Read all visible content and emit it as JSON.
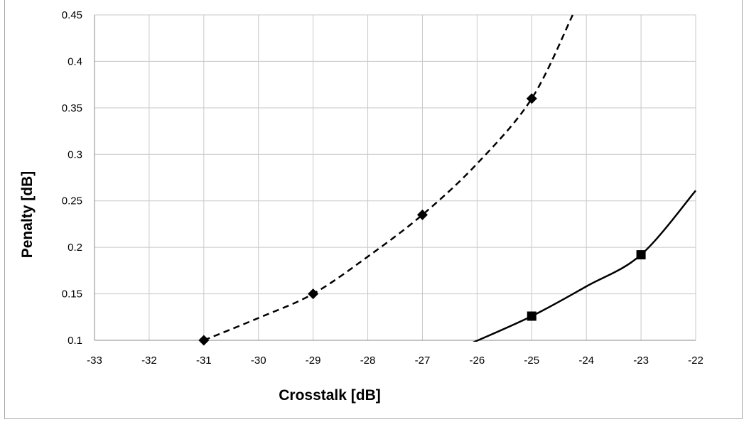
{
  "chart_data": {
    "type": "line",
    "title": "",
    "xlabel": "Crosstalk [dB]",
    "ylabel": "Penalty [dB]",
    "xlim": [
      -33,
      -22
    ],
    "ylim": [
      0.1,
      0.45
    ],
    "x_ticks": [
      "-33",
      "-32",
      "-31",
      "-30",
      "-29",
      "-28",
      "-27",
      "-26",
      "-25",
      "-24",
      "-23",
      "-22"
    ],
    "y_ticks": [
      "0.1",
      "0.15",
      "0.2",
      "0.25",
      "0.3",
      "0.35",
      "0.4",
      "0.45"
    ],
    "grid": true,
    "legend": "none",
    "series": [
      {
        "style": "dashed",
        "marker": "diamond",
        "color": "#000000",
        "x": [
          -31,
          -29,
          -27,
          -25
        ],
        "y": [
          0.1,
          0.15,
          0.235,
          0.36
        ],
        "curve_x": [
          -31,
          -30,
          -29,
          -28,
          -27,
          -26,
          -25,
          -24.25
        ],
        "curve_y": [
          0.1,
          0.124,
          0.15,
          0.19,
          0.235,
          0.29,
          0.36,
          0.45
        ]
      },
      {
        "style": "solid",
        "marker": "square",
        "color": "#000000",
        "x": [
          -25,
          -23
        ],
        "y": [
          0.126,
          0.192
        ],
        "curve_x": [
          -26.1,
          -25,
          -24,
          -23,
          -22
        ],
        "curve_y": [
          0.097,
          0.126,
          0.158,
          0.192,
          0.261
        ]
      }
    ]
  }
}
